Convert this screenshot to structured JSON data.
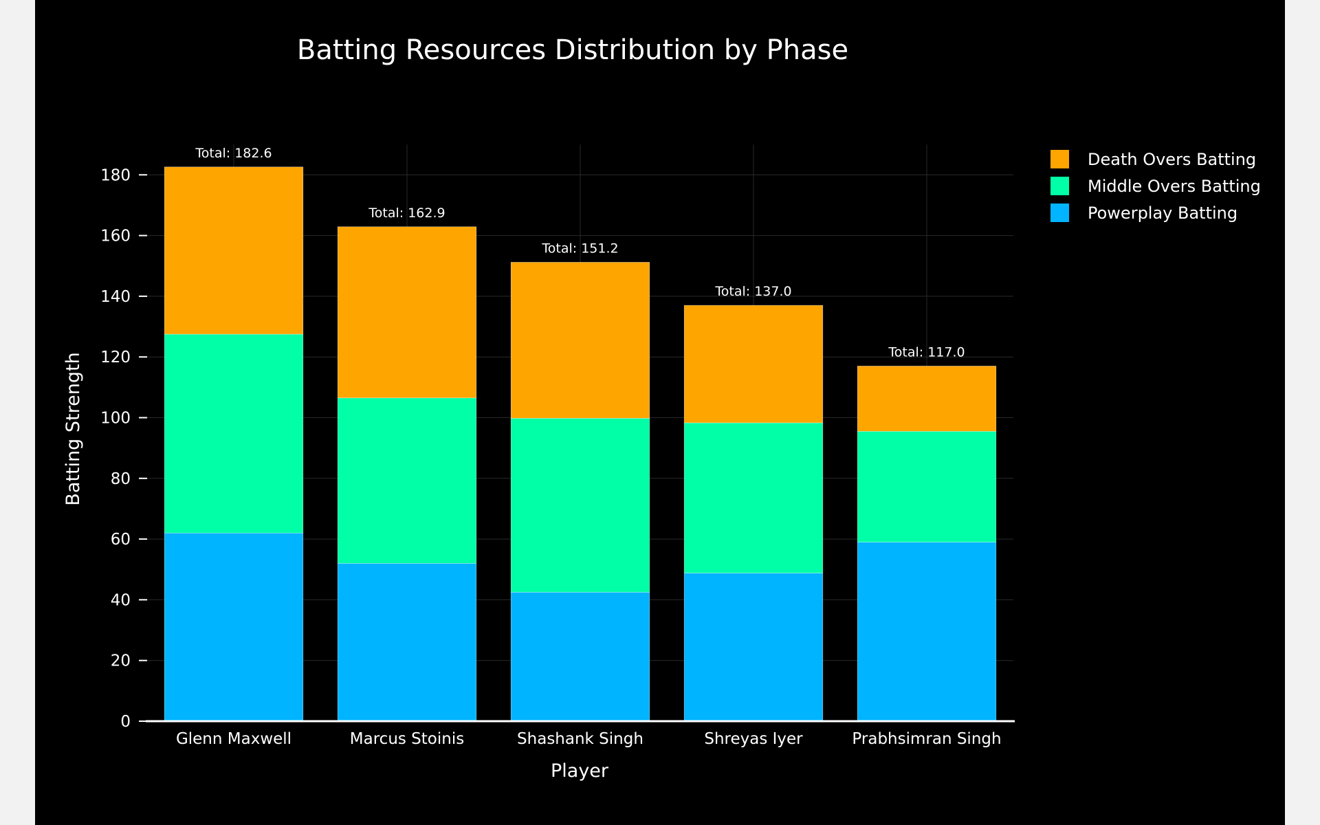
{
  "chart_data": {
    "type": "bar",
    "stacked": true,
    "title": "Batting Resources Distribution by Phase",
    "xlabel": "Player",
    "ylabel": "Batting Strength",
    "categories": [
      "Glenn Maxwell",
      "Marcus Stoinis",
      "Shashank Singh",
      "Shreyas Iyer",
      "Prabhsimran Singh"
    ],
    "series": [
      {
        "name": "Powerplay Batting",
        "color": "#00b4ff",
        "values": [
          62.0,
          52.0,
          42.5,
          48.8,
          59.0
        ]
      },
      {
        "name": "Middle Overs Batting",
        "color": "#00ffa6",
        "values": [
          65.5,
          54.5,
          57.3,
          49.5,
          36.5
        ]
      },
      {
        "name": "Death Overs Batting",
        "color": "#ffa500",
        "values": [
          55.1,
          56.4,
          51.4,
          38.7,
          21.5
        ]
      }
    ],
    "totals": [
      "Total: 182.6",
      "Total: 162.9",
      "Total: 151.2",
      "Total: 137.0",
      "Total: 117.0"
    ],
    "ylim": [
      0,
      190
    ],
    "yticks": [
      0,
      20,
      40,
      60,
      80,
      100,
      120,
      140,
      160,
      180
    ],
    "legend_order": [
      "Death Overs Batting",
      "Middle Overs Batting",
      "Powerplay Batting"
    ],
    "legend_position": "top-right",
    "grid": true,
    "background": "#000000",
    "gridcolor": "#2a2a2a"
  }
}
